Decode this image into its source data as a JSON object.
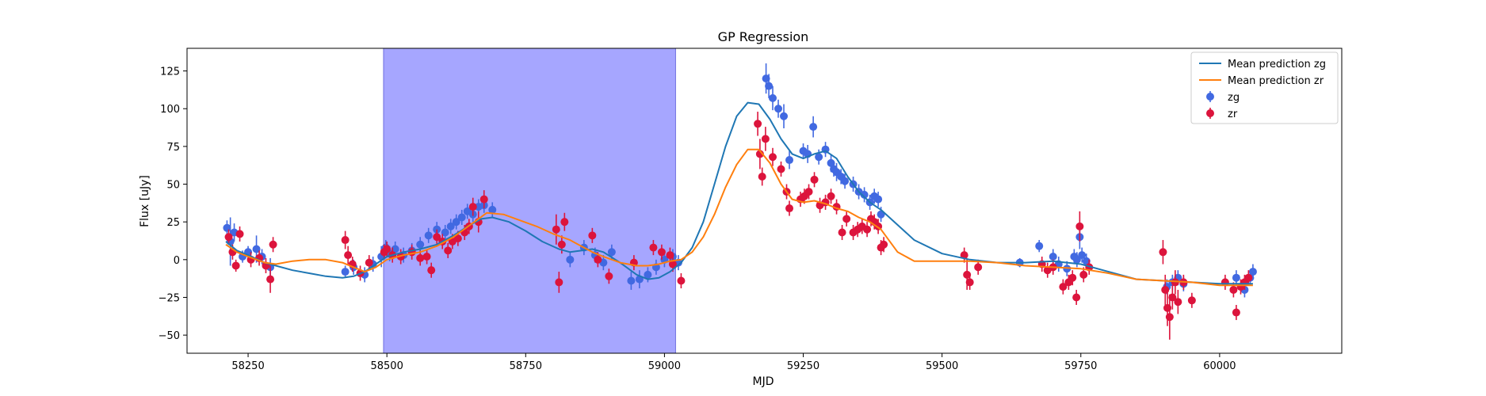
{
  "chart_data": {
    "type": "scatter",
    "title": "GP Regression",
    "xlabel": "MJD",
    "ylabel": "Flux [uJy]",
    "xlim": [
      58140,
      60220
    ],
    "ylim": [
      -62,
      140
    ],
    "xticks": [
      58250,
      58500,
      58750,
      59000,
      59250,
      59500,
      59750,
      60000
    ],
    "yticks": [
      -50,
      -25,
      0,
      25,
      50,
      75,
      100,
      125
    ],
    "grid": false,
    "legend_position": "top-right",
    "shaded_span": {
      "x0": 58494,
      "x1": 59020,
      "color": "#a6a6ff"
    },
    "series": [
      {
        "name": "Mean prediction zg",
        "kind": "line",
        "color": "#1f77b4",
        "x": [
          58210,
          58230,
          58250,
          58280,
          58300,
          58330,
          58360,
          58390,
          58420,
          58440,
          58460,
          58480,
          58500,
          58530,
          58560,
          58590,
          58620,
          58650,
          58670,
          58690,
          58720,
          58750,
          58780,
          58810,
          58830,
          58850,
          58870,
          58890,
          58920,
          58950,
          58970,
          58990,
          59010,
          59030,
          59050,
          59070,
          59090,
          59110,
          59130,
          59150,
          59170,
          59190,
          59210,
          59230,
          59250,
          59270,
          59290,
          59310,
          59330,
          59350,
          59370,
          59390,
          59420,
          59450,
          59500,
          59550,
          59600,
          59650,
          59700,
          59750,
          59800,
          59850,
          59900,
          59950,
          60000,
          60060
        ],
        "y": [
          12,
          6,
          3,
          -2,
          -4,
          -7,
          -9,
          -11,
          -12,
          -11,
          -8,
          -3,
          2,
          5,
          7,
          10,
          16,
          23,
          27,
          28,
          25,
          19,
          12,
          7,
          5,
          6,
          7,
          5,
          -2,
          -10,
          -13,
          -12,
          -8,
          -2,
          8,
          25,
          50,
          75,
          95,
          104,
          103,
          93,
          80,
          70,
          67,
          70,
          72,
          67,
          55,
          45,
          38,
          33,
          23,
          13,
          4,
          0,
          -2,
          -2,
          -1,
          -3,
          -8,
          -13,
          -14,
          -15,
          -16,
          -16
        ]
      },
      {
        "name": "Mean prediction zr",
        "kind": "line",
        "color": "#ff7f0e",
        "x": [
          58210,
          58230,
          58250,
          58280,
          58300,
          58330,
          58360,
          58390,
          58420,
          58440,
          58460,
          58480,
          58500,
          58530,
          58560,
          58590,
          58620,
          58650,
          58680,
          58710,
          58740,
          58770,
          58800,
          58830,
          58850,
          58870,
          58890,
          58920,
          58950,
          58970,
          58990,
          59010,
          59030,
          59050,
          59070,
          59090,
          59110,
          59130,
          59150,
          59170,
          59190,
          59210,
          59230,
          59250,
          59270,
          59290,
          59310,
          59330,
          59350,
          59370,
          59390,
          59420,
          59450,
          59500,
          59550,
          59600,
          59650,
          59700,
          59750,
          59800,
          59850,
          59900,
          59950,
          60000,
          60060
        ],
        "y": [
          10,
          5,
          2,
          -2,
          -3,
          -1,
          0,
          0,
          -2,
          -5,
          -8,
          -5,
          0,
          3,
          5,
          9,
          15,
          23,
          31,
          30,
          26,
          22,
          17,
          13,
          9,
          5,
          2,
          -2,
          -4,
          -4,
          -3,
          -1,
          0,
          5,
          15,
          30,
          48,
          63,
          73,
          73,
          64,
          50,
          40,
          38,
          39,
          37,
          34,
          32,
          28,
          25,
          20,
          5,
          -1,
          -1,
          -1,
          -2,
          -4,
          -5,
          -6,
          -9,
          -13,
          -14,
          -15,
          -17,
          -17
        ]
      },
      {
        "name": "zg",
        "kind": "errorbar",
        "color": "#4169e1",
        "x": [
          58212,
          58218,
          58225,
          58240,
          58250,
          58265,
          58275,
          58290,
          58425,
          58440,
          58460,
          58475,
          58490,
          58498,
          58505,
          58515,
          58530,
          58545,
          58560,
          58575,
          58590,
          58605,
          58615,
          58625,
          58635,
          58645,
          58655,
          58665,
          58675,
          58690,
          58830,
          58855,
          58875,
          58890,
          58905,
          58940,
          58955,
          58970,
          58985,
          59000,
          59015,
          59025,
          59183,
          59188,
          59195,
          59205,
          59215,
          59225,
          59250,
          59258,
          59268,
          59278,
          59290,
          59300,
          59305,
          59310,
          59318,
          59325,
          59340,
          59350,
          59360,
          59370,
          59378,
          59385,
          59390,
          59640,
          59675,
          59700,
          59710,
          59725,
          59738,
          59743,
          59748,
          59752,
          59760,
          59905,
          59915,
          59925,
          59935,
          60030,
          60045,
          60055,
          60060
        ],
        "y": [
          21,
          12,
          18,
          2,
          5,
          7,
          2,
          -5,
          -8,
          -5,
          -10,
          -3,
          2,
          8,
          4,
          7,
          3,
          6,
          10,
          16,
          20,
          18,
          22,
          25,
          28,
          32,
          30,
          35,
          36,
          33,
          0,
          8,
          3,
          -2,
          5,
          -14,
          -13,
          -10,
          -5,
          0,
          2,
          -2,
          120,
          115,
          107,
          100,
          95,
          66,
          72,
          70,
          88,
          68,
          73,
          64,
          60,
          58,
          55,
          52,
          50,
          45,
          43,
          38,
          42,
          40,
          30,
          -2,
          9,
          2,
          -3,
          -6,
          2,
          0,
          15,
          3,
          -1,
          -18,
          -15,
          -12,
          -16,
          -12,
          -20,
          -12,
          -8
        ],
        "errors": [
          5,
          16,
          6,
          4,
          4,
          9,
          5,
          6,
          4,
          5,
          5,
          5,
          7,
          5,
          5,
          5,
          5,
          5,
          5,
          5,
          5,
          5,
          5,
          5,
          5,
          5,
          5,
          5,
          5,
          5,
          5,
          5,
          5,
          5,
          5,
          6,
          6,
          5,
          5,
          5,
          5,
          5,
          10,
          8,
          8,
          6,
          8,
          6,
          5,
          6,
          7,
          5,
          5,
          6,
          5,
          6,
          5,
          5,
          5,
          5,
          5,
          5,
          5,
          5,
          5,
          3,
          4,
          5,
          5,
          5,
          5,
          5,
          8,
          5,
          5,
          5,
          5,
          5,
          5,
          5,
          5,
          5,
          5
        ]
      },
      {
        "name": "zr",
        "kind": "errorbar",
        "color": "#dc143c",
        "x": [
          58215,
          58222,
          58228,
          58235,
          58255,
          58270,
          58282,
          58290,
          58295,
          58425,
          58430,
          58438,
          58452,
          58468,
          58495,
          58500,
          58510,
          58525,
          58545,
          58560,
          58572,
          58580,
          58590,
          58600,
          58610,
          58618,
          58628,
          58640,
          58648,
          58655,
          58665,
          58675,
          58805,
          58810,
          58815,
          58820,
          58870,
          58880,
          58900,
          58945,
          58980,
          58995,
          59010,
          59015,
          59030,
          59168,
          59172,
          59176,
          59182,
          59195,
          59210,
          59220,
          59225,
          59245,
          59252,
          59260,
          59270,
          59280,
          59290,
          59300,
          59310,
          59320,
          59328,
          59340,
          59348,
          59356,
          59365,
          59372,
          59378,
          59385,
          59390,
          59395,
          59540,
          59545,
          59550,
          59565,
          59680,
          59690,
          59700,
          59718,
          59728,
          59735,
          59742,
          59748,
          59755,
          59765,
          59898,
          59902,
          59906,
          59910,
          59915,
          59920,
          59925,
          59935,
          59950,
          60010,
          60025,
          60030,
          60038,
          60045,
          60052
        ],
        "y": [
          15,
          5,
          -4,
          17,
          0,
          1,
          -4,
          -13,
          10,
          13,
          3,
          -3,
          -9,
          -2,
          5,
          7,
          3,
          2,
          5,
          1,
          2,
          -7,
          15,
          12,
          6,
          12,
          14,
          18,
          22,
          35,
          25,
          40,
          20,
          -15,
          10,
          25,
          16,
          0,
          -11,
          -2,
          8,
          5,
          3,
          -3,
          -14,
          90,
          70,
          55,
          80,
          68,
          60,
          45,
          34,
          40,
          42,
          45,
          53,
          36,
          38,
          42,
          35,
          18,
          27,
          18,
          20,
          22,
          20,
          27,
          25,
          22,
          8,
          10,
          3,
          -10,
          -15,
          -5,
          -3,
          -7,
          -5,
          -18,
          -15,
          -12,
          -25,
          22,
          -10,
          -5,
          5,
          -20,
          -32,
          -38,
          -25,
          -15,
          -28,
          -15,
          -27,
          -15,
          -20,
          -35,
          -18,
          -15,
          -12
        ],
        "errors": [
          5,
          5,
          4,
          5,
          5,
          5,
          5,
          9,
          5,
          6,
          6,
          5,
          5,
          5,
          5,
          5,
          5,
          5,
          5,
          5,
          5,
          5,
          5,
          5,
          5,
          5,
          5,
          5,
          5,
          6,
          7,
          6,
          10,
          7,
          6,
          6,
          5,
          5,
          5,
          5,
          5,
          5,
          5,
          5,
          5,
          8,
          10,
          6,
          8,
          6,
          5,
          5,
          5,
          5,
          5,
          5,
          5,
          5,
          5,
          5,
          5,
          5,
          5,
          5,
          5,
          5,
          5,
          5,
          5,
          5,
          5,
          5,
          5,
          10,
          5,
          5,
          5,
          5,
          5,
          5,
          5,
          5,
          5,
          10,
          5,
          5,
          8,
          10,
          12,
          15,
          8,
          8,
          8,
          5,
          5,
          5,
          5,
          5,
          5,
          5,
          5
        ]
      }
    ]
  }
}
